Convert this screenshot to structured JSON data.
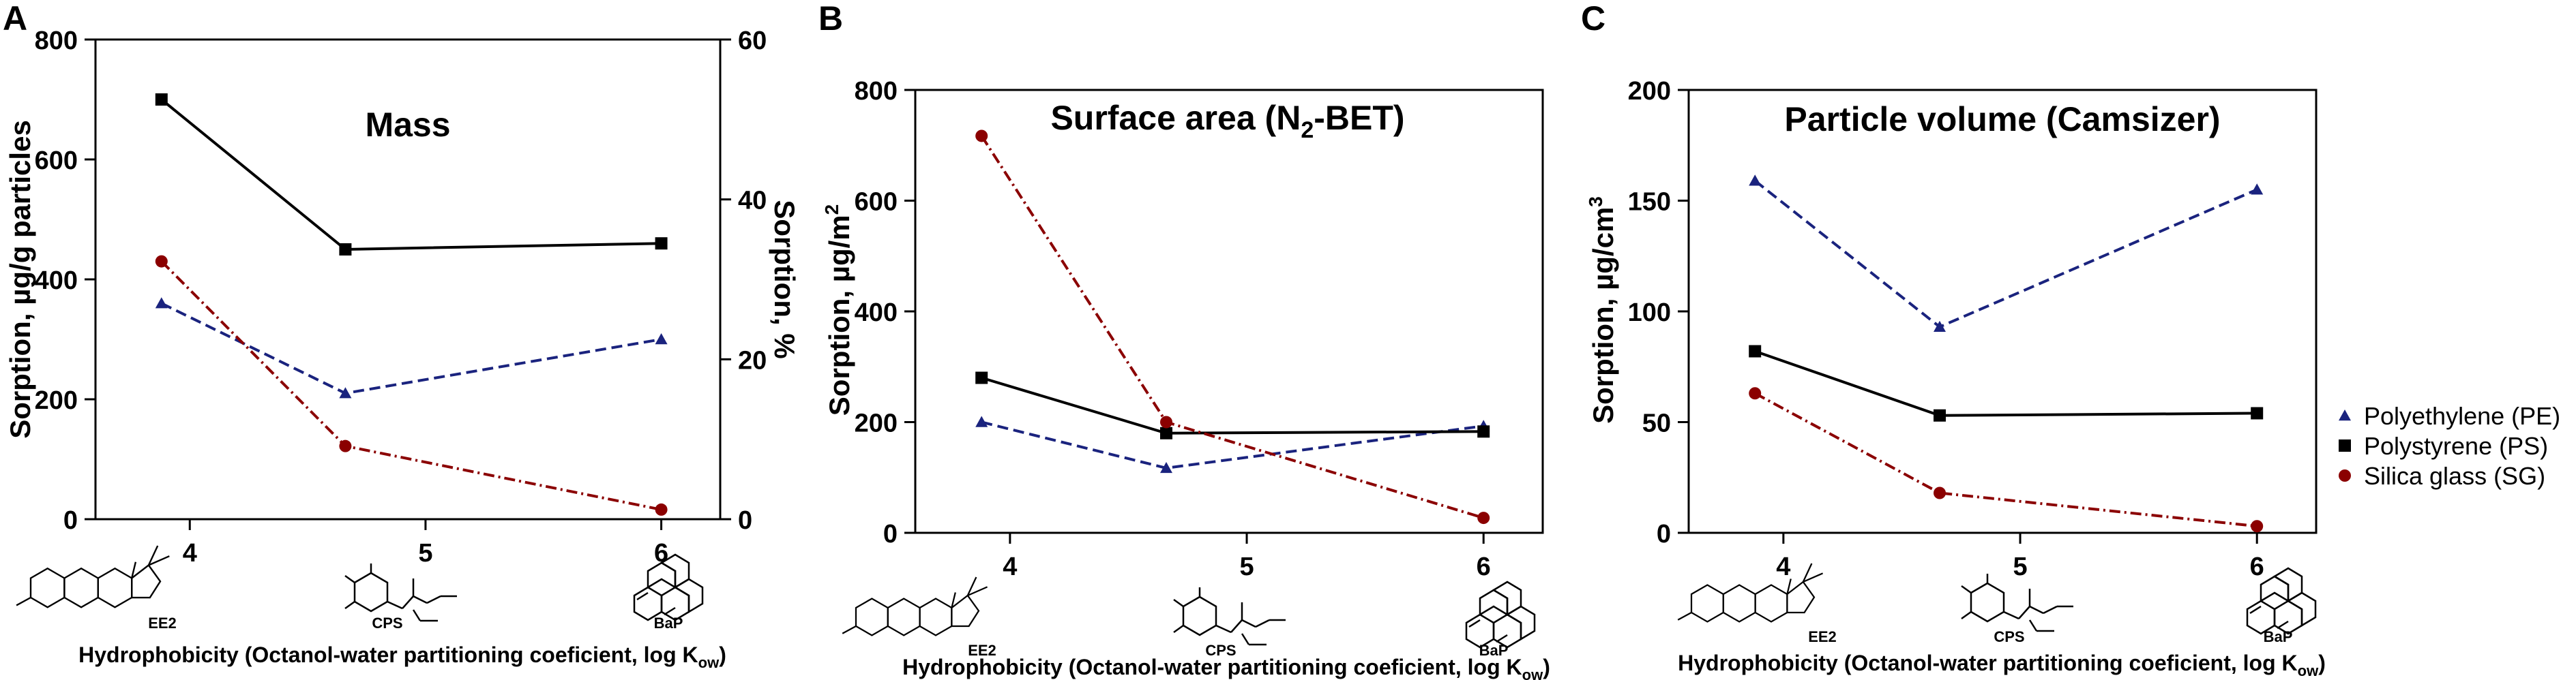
{
  "figure": {
    "legend": [
      {
        "label": "Polyethylene (PE)",
        "color": "#1a237e",
        "marker": "triangle",
        "dash": "dashed"
      },
      {
        "label": "Polystyrene (PS)",
        "color": "#000000",
        "marker": "square",
        "dash": "solid"
      },
      {
        "label": "Silica glass (SG)",
        "color": "#8b0000",
        "marker": "circle",
        "dash": "dashdot"
      }
    ]
  },
  "chart_data": [
    {
      "panel_letter": "A",
      "type": "line",
      "title": "Mass",
      "ylabel": "Sorption, µg/g particles",
      "ylabel_right": "Sorption, %",
      "xlabel_main": "Hydrophobicity (Octanol-water partitioning coeficient, log K",
      "xlabel_sub": "ow",
      "xlabel_end": ")",
      "xlim": [
        3.6,
        6.25
      ],
      "xticks": [
        4,
        5,
        6
      ],
      "ylim": [
        0,
        800
      ],
      "yticks": [
        0,
        200,
        400,
        600,
        800
      ],
      "ylim_right": [
        0,
        60
      ],
      "yticks_right": [
        0,
        20,
        40,
        60
      ],
      "x": [
        3.88,
        4.66,
        6.0
      ],
      "series": [
        {
          "name": "Polyethylene (PE)",
          "values": [
            360,
            210,
            300
          ]
        },
        {
          "name": "Polystyrene (PS)",
          "values": [
            700,
            450,
            460
          ]
        },
        {
          "name": "Silica glass (SG)",
          "values": [
            430,
            122,
            16
          ]
        }
      ],
      "molecules": [
        "EE2",
        "CPS",
        "BaP"
      ]
    },
    {
      "panel_letter": "B",
      "type": "line",
      "title_main": "Surface area (N",
      "title_sub": "2",
      "title_end": "-BET)",
      "ylabel_main": "Sorption, µg/m",
      "ylabel_sup": "2",
      "xlabel_main": "Hydrophobicity (Octanol-water partitioning coeficient, log K",
      "xlabel_sub": "ow",
      "xlabel_end": ")",
      "xlim": [
        3.6,
        6.25
      ],
      "xticks": [
        4,
        5,
        6
      ],
      "ylim": [
        0,
        800
      ],
      "yticks": [
        0,
        200,
        400,
        600,
        800
      ],
      "x": [
        3.88,
        4.66,
        6.0
      ],
      "series": [
        {
          "name": "Polyethylene (PE)",
          "values": [
            200,
            117,
            193
          ]
        },
        {
          "name": "Polystyrene (PS)",
          "values": [
            280,
            180,
            183
          ]
        },
        {
          "name": "Silica glass (SG)",
          "values": [
            717,
            200,
            27
          ]
        }
      ],
      "molecules": [
        "EE2",
        "CPS",
        "BaP"
      ]
    },
    {
      "panel_letter": "C",
      "type": "line",
      "title": "Particle volume (Camsizer)",
      "ylabel_main": "Sorption, µg/cm",
      "ylabel_sup": "3",
      "xlabel_main": "Hydrophobicity (Octanol-water partitioning coeficient, log K",
      "xlabel_sub": "ow",
      "xlabel_end": ")",
      "xlim": [
        3.6,
        6.25
      ],
      "xticks": [
        4,
        5,
        6
      ],
      "ylim": [
        0,
        200
      ],
      "yticks": [
        0,
        50,
        100,
        150,
        200
      ],
      "x": [
        3.88,
        4.66,
        6.0
      ],
      "series": [
        {
          "name": "Polyethylene (PE)",
          "values": [
            159,
            93,
            155
          ]
        },
        {
          "name": "Polystyrene (PS)",
          "values": [
            82,
            53,
            54
          ]
        },
        {
          "name": "Silica glass (SG)",
          "values": [
            63,
            18,
            3
          ]
        }
      ],
      "molecules": [
        "EE2",
        "CPS",
        "BaP"
      ]
    }
  ]
}
